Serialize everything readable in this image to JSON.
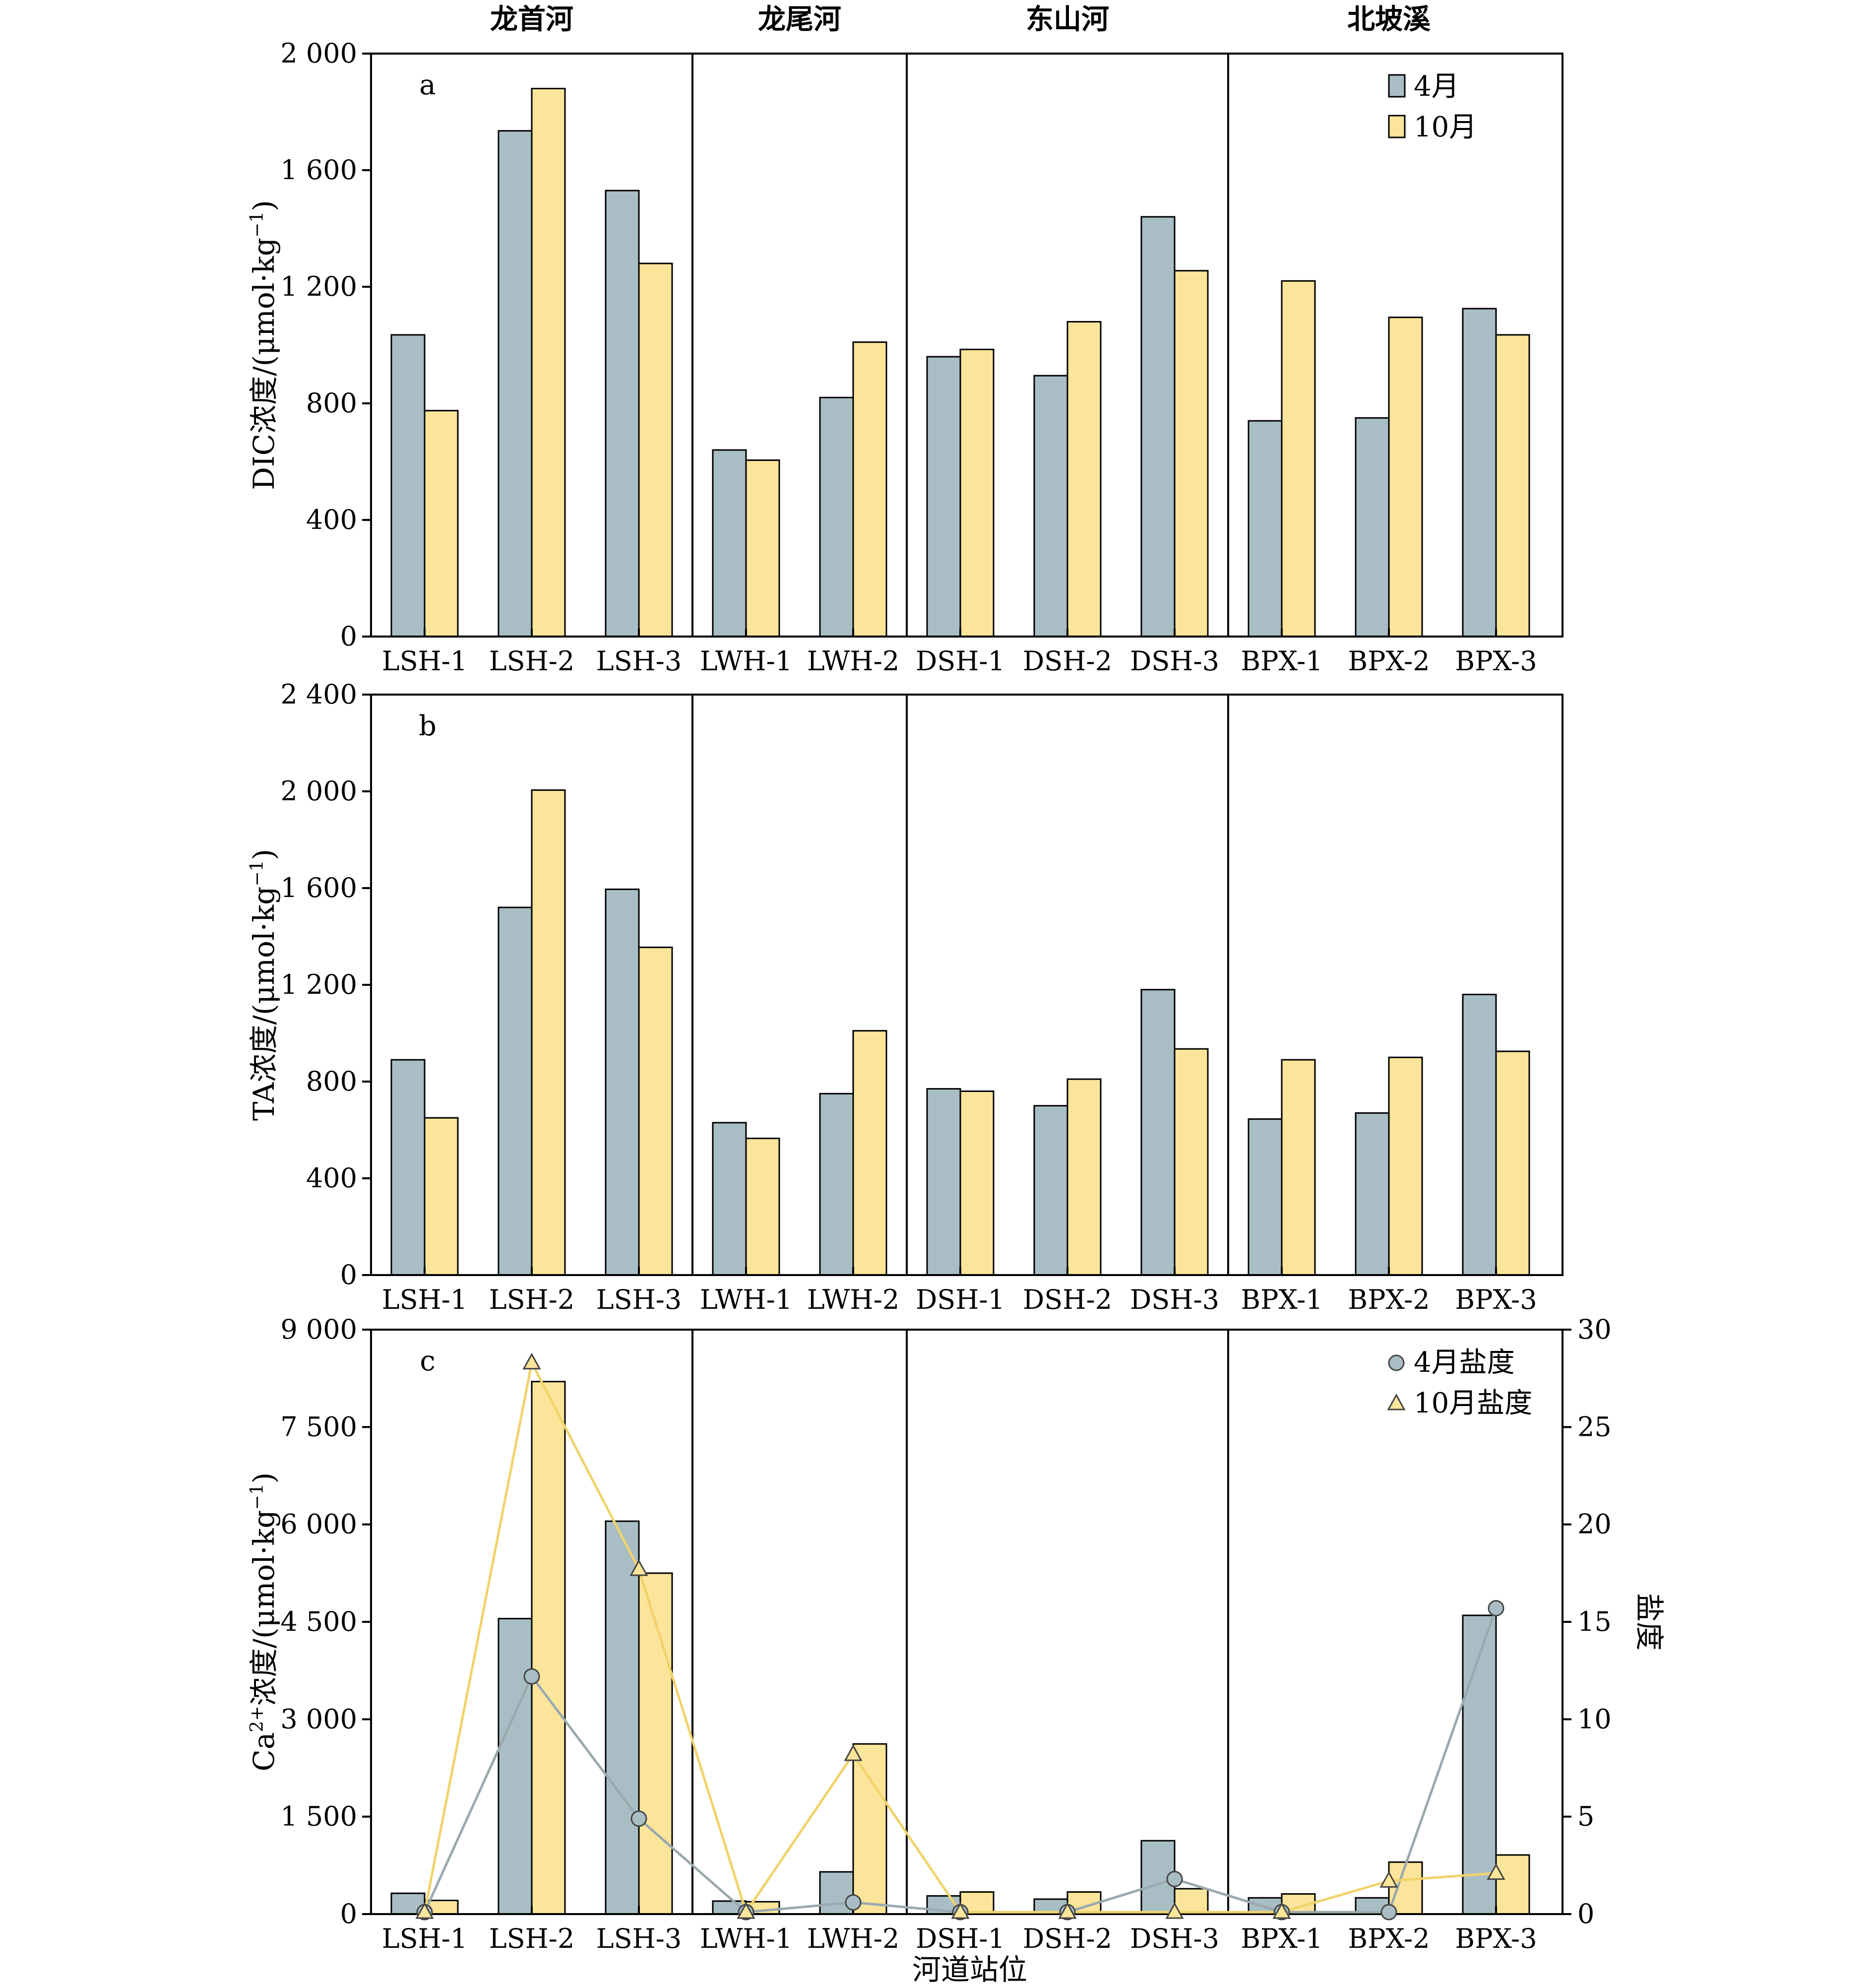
{
  "chart_data": {
    "type": "bar",
    "groups": [
      {
        "name": "龙首河",
        "stations": [
          "LSH-1",
          "LSH-2",
          "LSH-3"
        ]
      },
      {
        "name": "龙尾河",
        "stations": [
          "LWH-1",
          "LWH-2"
        ]
      },
      {
        "name": "东山河",
        "stations": [
          "DSH-1",
          "DSH-2",
          "DSH-3"
        ]
      },
      {
        "name": "北坡溪",
        "stations": [
          "BPX-1",
          "BPX-2",
          "BPX-3"
        ]
      }
    ],
    "categories": [
      "LSH-1",
      "LSH-2",
      "LSH-3",
      "LWH-1",
      "LWH-2",
      "DSH-1",
      "DSH-2",
      "DSH-3",
      "BPX-1",
      "BPX-2",
      "BPX-3"
    ],
    "xlabel": "河道站位",
    "colors": {
      "april": "#a9bec4",
      "october": "#fbe59a",
      "april_line": "#9aa9ae",
      "october_line": "#f1d36c"
    },
    "panels": [
      {
        "letter": "a",
        "ylabel_main": "DIC浓度/(μmol·kg",
        "ylabel_sup": "−1",
        "ylabel_end": ")",
        "ylim": [
          0,
          2000
        ],
        "yticks": [
          0,
          400,
          800,
          1200,
          1600,
          2000
        ],
        "ytick_labels": [
          "0",
          "400",
          "800",
          "1 200",
          "1 600",
          "2 000"
        ],
        "legend": [
          "4月",
          "10月"
        ],
        "series": [
          {
            "name": "4月",
            "values": [
              1035,
              1735,
              1530,
              640,
              820,
              960,
              895,
              1440,
              740,
              750,
              1125
            ]
          },
          {
            "name": "10月",
            "values": [
              775,
              1880,
              1280,
              605,
              1010,
              985,
              1080,
              1255,
              1220,
              1095,
              1035
            ]
          }
        ]
      },
      {
        "letter": "b",
        "ylabel_main": "TA浓度/(μmol·kg",
        "ylabel_sup": "−1",
        "ylabel_end": ")",
        "ylim": [
          0,
          2400
        ],
        "yticks": [
          0,
          400,
          800,
          1200,
          1600,
          2000,
          2400
        ],
        "ytick_labels": [
          "0",
          "400",
          "800",
          "1 200",
          "1 600",
          "2 000",
          "2 400"
        ],
        "series": [
          {
            "name": "4月",
            "values": [
              890,
              1520,
              1595,
              630,
              750,
              770,
              700,
              1180,
              645,
              670,
              1160
            ]
          },
          {
            "name": "10月",
            "values": [
              650,
              2005,
              1355,
              565,
              1010,
              760,
              810,
              935,
              890,
              900,
              925
            ]
          }
        ]
      },
      {
        "letter": "c",
        "ylabel_main": "Ca",
        "ylabel_sup1": "2+",
        "ylabel_mid": "浓度/(μmol·kg",
        "ylabel_sup2": "−1",
        "ylabel_end": ")",
        "ylim": [
          0,
          9000
        ],
        "yticks": [
          0,
          1500,
          3000,
          4500,
          6000,
          7500,
          9000
        ],
        "ytick_labels": [
          "0",
          "1 500",
          "3 000",
          "4 500",
          "6 000",
          "7 500",
          "9 000"
        ],
        "y2label": "盐度",
        "y2lim": [
          0,
          30
        ],
        "y2ticks": [
          0,
          5,
          10,
          15,
          20,
          25,
          30
        ],
        "y2tick_labels": [
          "0",
          "5",
          "10",
          "15",
          "20",
          "25",
          "30"
        ],
        "legend": [
          "4月盐度",
          "10月盐度"
        ],
        "series": [
          {
            "name": "4月",
            "values": [
              320,
              4550,
              6050,
              200,
              650,
              280,
              230,
              1130,
              250,
              250,
              4600
            ]
          },
          {
            "name": "10月",
            "values": [
              210,
              8200,
              5250,
              190,
              2620,
              340,
              340,
              390,
              310,
              800,
              910
            ]
          }
        ],
        "line_series": [
          {
            "name": "4月盐度",
            "marker": "circle",
            "values": [
              0.1,
              12.2,
              4.9,
              0.1,
              0.6,
              0.1,
              0.1,
              1.8,
              0.1,
              0.1,
              15.7
            ]
          },
          {
            "name": "10月盐度",
            "marker": "triangle",
            "values": [
              0.1,
              28.3,
              17.7,
              0.1,
              8.2,
              0.1,
              0.1,
              0.1,
              0.1,
              1.7,
              2.1
            ]
          }
        ]
      }
    ]
  }
}
